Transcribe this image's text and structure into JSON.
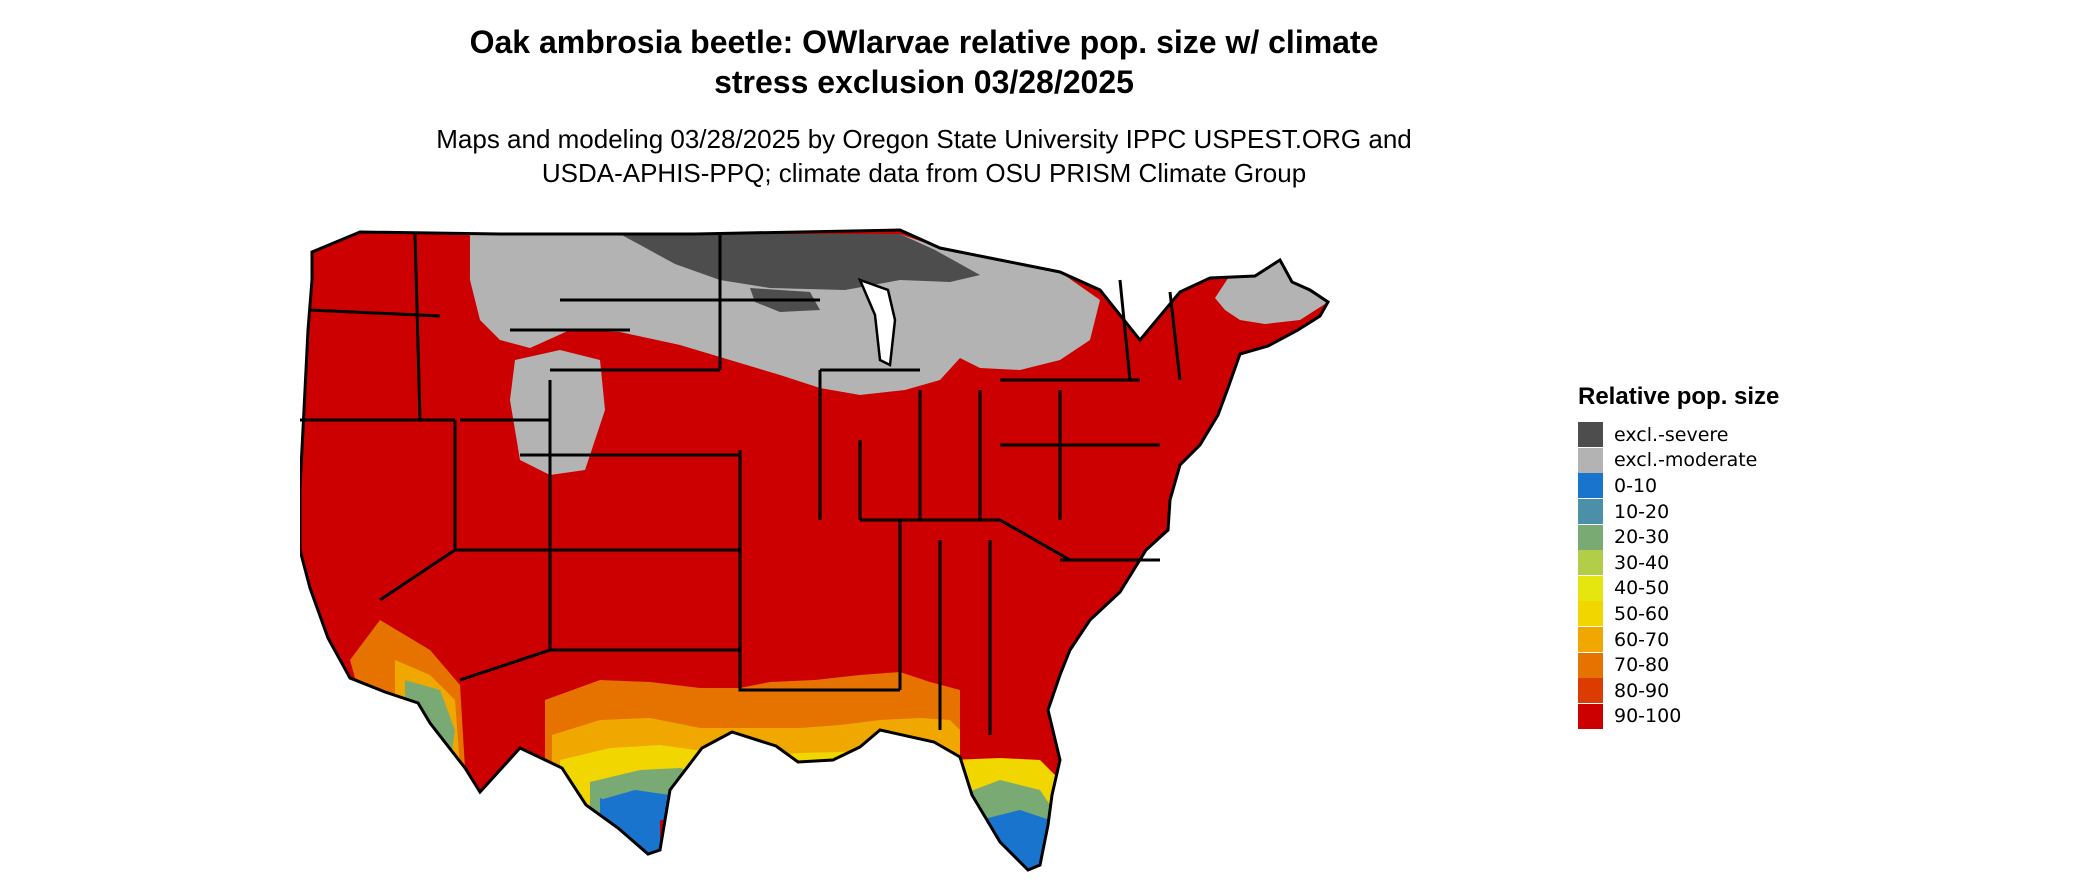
{
  "title": {
    "line1": "Oak ambrosia beetle: OWlarvae relative pop. size w/ climate",
    "line2": "stress exclusion 03/28/2025"
  },
  "subtitle": {
    "line1": "Maps and modeling 03/28/2025 by Oregon State University IPPC USPEST.ORG and",
    "line2": "USDA-APHIS-PPQ; climate data from OSU PRISM Climate Group"
  },
  "legend": {
    "title": "Relative pop. size",
    "items": [
      {
        "label": "excl.-severe",
        "color": "#4d4d4d"
      },
      {
        "label": "excl.-moderate",
        "color": "#b3b3b3"
      },
      {
        "label": "0-10",
        "color": "#1874cd"
      },
      {
        "label": "10-20",
        "color": "#4b8fa8"
      },
      {
        "label": "20-30",
        "color": "#7aaa74"
      },
      {
        "label": "30-40",
        "color": "#b2cd47"
      },
      {
        "label": "40-50",
        "color": "#e5e510"
      },
      {
        "label": "50-60",
        "color": "#f2d600"
      },
      {
        "label": "60-70",
        "color": "#f0a800"
      },
      {
        "label": "70-80",
        "color": "#e67300"
      },
      {
        "label": "80-90",
        "color": "#dd3c00"
      },
      {
        "label": "90-100",
        "color": "#cc0000"
      }
    ]
  }
}
